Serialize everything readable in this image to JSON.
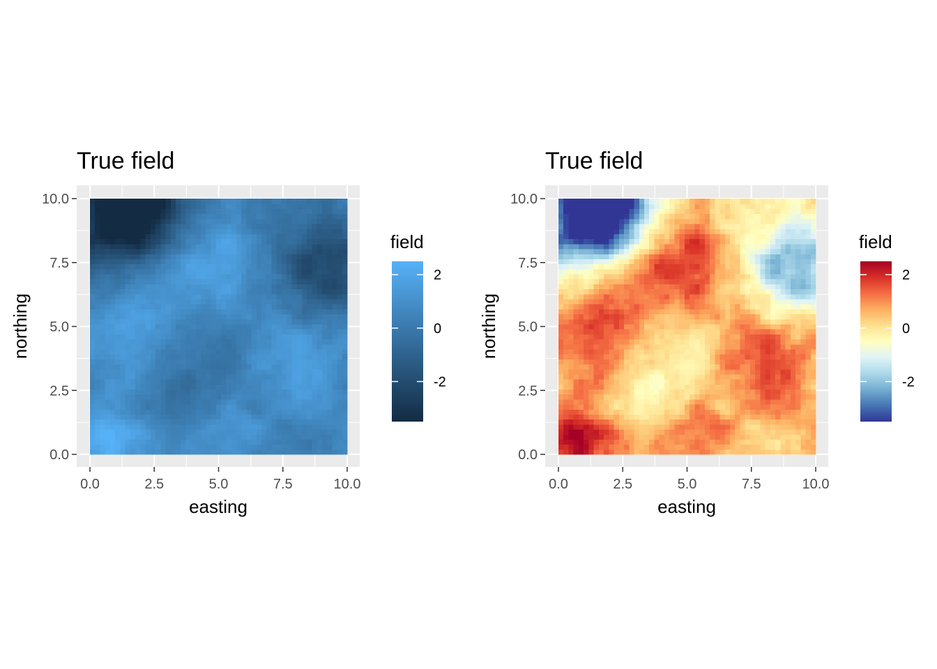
{
  "chart_data": [
    {
      "type": "heatmap",
      "title": "True field",
      "xlabel": "easting",
      "ylabel": "northing",
      "xlim": [
        0,
        10
      ],
      "ylim": [
        0,
        10
      ],
      "x_ticks": [
        "0.0",
        "2.5",
        "5.0",
        "7.5",
        "10.0"
      ],
      "y_ticks": [
        "0.0",
        "2.5",
        "5.0",
        "7.5",
        "10.0"
      ],
      "grid": true,
      "legend": {
        "title": "field",
        "placement": "right",
        "range": [
          -3.5,
          2.5
        ],
        "ticks": [
          "2",
          "0",
          "-2"
        ],
        "tick_values": [
          2,
          0,
          -2
        ],
        "palette": [
          "#132B43",
          "#56B1F7"
        ]
      },
      "resolution": "51 x 51 grid over [0,10] x [0,10]",
      "field_peaks": [
        {
          "x": 4.8,
          "y": 7.4,
          "value": 2.0
        },
        {
          "x": 1.2,
          "y": 4.8,
          "value": 1.6
        },
        {
          "x": 8.3,
          "y": 3.3,
          "value": 1.8
        },
        {
          "x": 0.4,
          "y": 0.3,
          "value": 2.3
        },
        {
          "x": 5.3,
          "y": 0.6,
          "value": 1.2
        },
        {
          "x": 4.0,
          "y": 3.0,
          "value": -0.5
        },
        {
          "x": 0.8,
          "y": 9.2,
          "value": -3.0
        },
        {
          "x": 2.2,
          "y": 9.9,
          "value": -3.2
        },
        {
          "x": 9.2,
          "y": 7.5,
          "value": -2.4
        }
      ]
    },
    {
      "type": "heatmap",
      "title": "True field",
      "xlabel": "easting",
      "ylabel": "northing",
      "xlim": [
        0,
        10
      ],
      "ylim": [
        0,
        10
      ],
      "x_ticks": [
        "0.0",
        "2.5",
        "5.0",
        "7.5",
        "10.0"
      ],
      "y_ticks": [
        "0.0",
        "2.5",
        "5.0",
        "7.5",
        "10.0"
      ],
      "grid": true,
      "legend": {
        "title": "field",
        "placement": "right",
        "range": [
          -3.5,
          2.5
        ],
        "ticks": [
          "2",
          "0",
          "-2"
        ],
        "tick_values": [
          2,
          0,
          -2
        ],
        "palette": [
          "#313695",
          "#4575B4",
          "#74ADD1",
          "#ABD9E9",
          "#E0F3F8",
          "#FFFFBF",
          "#FEE090",
          "#FDAE61",
          "#F46D43",
          "#D73027",
          "#A50026"
        ]
      },
      "resolution": "51 x 51 grid over [0,10] x [0,10]",
      "field_peaks": [
        {
          "x": 4.8,
          "y": 7.4,
          "value": 2.0
        },
        {
          "x": 1.2,
          "y": 4.8,
          "value": 1.6
        },
        {
          "x": 8.3,
          "y": 3.3,
          "value": 1.8
        },
        {
          "x": 0.4,
          "y": 0.3,
          "value": 2.3
        },
        {
          "x": 5.3,
          "y": 0.6,
          "value": 1.2
        },
        {
          "x": 4.0,
          "y": 3.0,
          "value": -0.5
        },
        {
          "x": 0.8,
          "y": 9.2,
          "value": -3.0
        },
        {
          "x": 2.2,
          "y": 9.9,
          "value": -3.2
        },
        {
          "x": 9.2,
          "y": 7.5,
          "value": -2.4
        }
      ]
    }
  ]
}
